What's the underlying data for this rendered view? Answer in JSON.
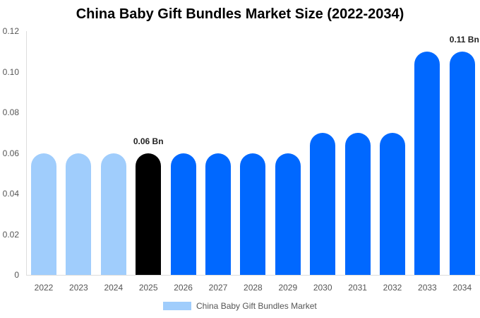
{
  "chart_data": {
    "type": "bar",
    "title": "China Baby Gift Bundles Market Size (2022-2034)",
    "xlabel": "",
    "ylabel": "",
    "ylim": [
      0,
      0.12
    ],
    "yticks": [
      "0",
      "0.02",
      "0.04",
      "0.06",
      "0.08",
      "0.10",
      "0.12"
    ],
    "categories": [
      "2022",
      "2023",
      "2024",
      "2025",
      "2026",
      "2027",
      "2028",
      "2029",
      "2030",
      "2031",
      "2032",
      "2033",
      "2034"
    ],
    "series": [
      {
        "name": "China Baby Gift Bundles Market",
        "values": [
          0.06,
          0.06,
          0.06,
          0.06,
          0.06,
          0.06,
          0.06,
          0.06,
          0.07,
          0.07,
          0.07,
          0.11,
          0.11
        ]
      }
    ],
    "bar_colors": [
      "#a0cdfc",
      "#a0cdfc",
      "#a0cdfc",
      "#000000",
      "#0068ff",
      "#0068ff",
      "#0068ff",
      "#0068ff",
      "#0068ff",
      "#0068ff",
      "#0068ff",
      "#0068ff",
      "#0068ff"
    ],
    "annotations": [
      {
        "index": 3,
        "text": "0.06 Bn"
      },
      {
        "index": 12,
        "text": "0.11 Bn"
      }
    ],
    "legend": {
      "position": "bottom",
      "entries": [
        "China Baby Gift Bundles Market"
      ]
    },
    "grid": false
  }
}
